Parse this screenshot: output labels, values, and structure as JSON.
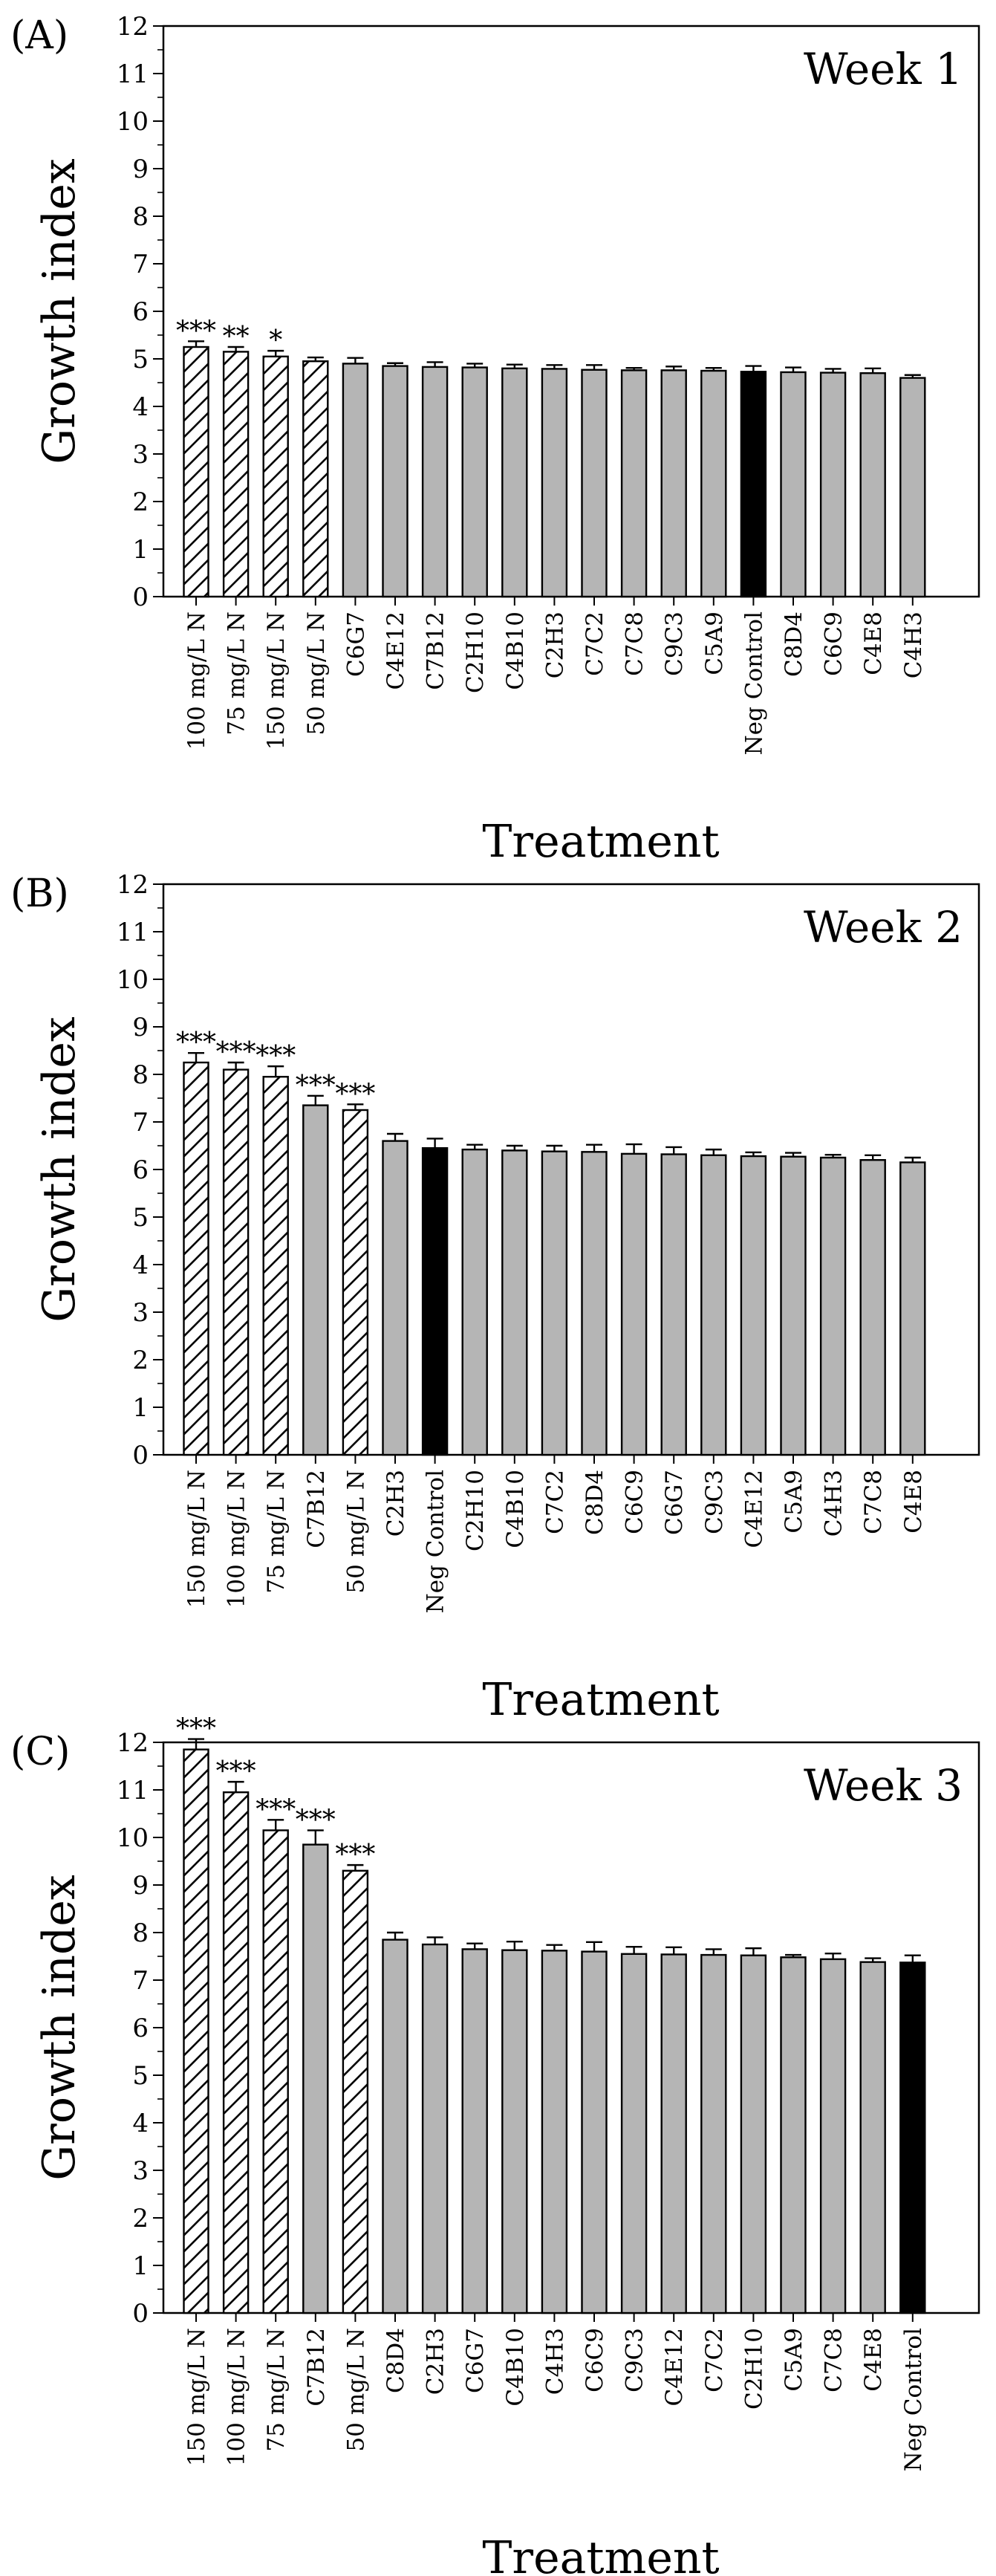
{
  "chart_data": [
    {
      "type": "bar",
      "panel_label": "(A)",
      "title": "Week 1",
      "xlabel": "Treatment",
      "ylabel": "Growth index",
      "ylim": [
        0,
        12
      ],
      "yticks": [
        0,
        1,
        2,
        3,
        4,
        5,
        6,
        7,
        8,
        9,
        10,
        11,
        12
      ],
      "categories": [
        "100 mg/L N",
        "75 mg/L N",
        "150 mg/L N",
        "50 mg/L N",
        "C6G7",
        "C4E12",
        "C7B12",
        "C2H10",
        "C4B10",
        "C2H3",
        "C7C2",
        "C7C8",
        "C9C3",
        "C5A9",
        "Neg Control",
        "C8D4",
        "C6C9",
        "C4E8",
        "C4H3"
      ],
      "values": [
        5.25,
        5.15,
        5.05,
        4.95,
        4.9,
        4.85,
        4.83,
        4.82,
        4.8,
        4.79,
        4.77,
        4.76,
        4.76,
        4.75,
        4.73,
        4.72,
        4.71,
        4.7,
        4.6
      ],
      "errors": [
        0.12,
        0.1,
        0.12,
        0.08,
        0.12,
        0.06,
        0.1,
        0.08,
        0.08,
        0.08,
        0.1,
        0.05,
        0.08,
        0.06,
        0.12,
        0.1,
        0.08,
        0.1,
        0.06
      ],
      "bar_styles": [
        "hatched",
        "hatched",
        "hatched",
        "hatched",
        "gray",
        "gray",
        "gray",
        "gray",
        "gray",
        "gray",
        "gray",
        "gray",
        "gray",
        "gray",
        "black",
        "gray",
        "gray",
        "gray",
        "gray"
      ],
      "significance": [
        "***",
        "**",
        "*",
        "",
        "",
        "",
        "",
        "",
        "",
        "",
        "",
        "",
        "",
        "",
        "",
        "",
        "",
        "",
        ""
      ]
    },
    {
      "type": "bar",
      "panel_label": "(B)",
      "title": "Week 2",
      "xlabel": "Treatment",
      "ylabel": "Growth index",
      "ylim": [
        0,
        12
      ],
      "yticks": [
        0,
        1,
        2,
        3,
        4,
        5,
        6,
        7,
        8,
        9,
        10,
        11,
        12
      ],
      "categories": [
        "150 mg/L N",
        "100 mg/L N",
        "75 mg/L N",
        "C7B12",
        "50 mg/L N",
        "C2H3",
        "Neg Control",
        "C2H10",
        "C4B10",
        "C7C2",
        "C8D4",
        "C6C9",
        "C6G7",
        "C9C3",
        "C4E12",
        "C5A9",
        "C4H3",
        "C7C8",
        "C4E8"
      ],
      "values": [
        8.25,
        8.1,
        7.95,
        7.35,
        7.25,
        6.6,
        6.45,
        6.42,
        6.4,
        6.38,
        6.37,
        6.33,
        6.32,
        6.3,
        6.28,
        6.27,
        6.25,
        6.2,
        6.15
      ],
      "errors": [
        0.2,
        0.15,
        0.22,
        0.2,
        0.12,
        0.15,
        0.2,
        0.1,
        0.1,
        0.12,
        0.15,
        0.2,
        0.15,
        0.12,
        0.08,
        0.08,
        0.06,
        0.1,
        0.1
      ],
      "bar_styles": [
        "hatched",
        "hatched",
        "hatched",
        "gray",
        "hatched",
        "gray",
        "black",
        "gray",
        "gray",
        "gray",
        "gray",
        "gray",
        "gray",
        "gray",
        "gray",
        "gray",
        "gray",
        "gray",
        "gray"
      ],
      "significance": [
        "***",
        "***",
        "***",
        "***",
        "***",
        "",
        "",
        "",
        "",
        "",
        "",
        "",
        "",
        "",
        "",
        "",
        "",
        "",
        ""
      ]
    },
    {
      "type": "bar",
      "panel_label": "(C)",
      "title": "Week 3",
      "xlabel": "Treatment",
      "ylabel": "Growth index",
      "ylim": [
        0,
        12
      ],
      "yticks": [
        0,
        1,
        2,
        3,
        4,
        5,
        6,
        7,
        8,
        9,
        10,
        11,
        12
      ],
      "categories": [
        "150 mg/L N",
        "100 mg/L N",
        "75 mg/L N",
        "C7B12",
        "50 mg/L N",
        "C8D4",
        "C2H3",
        "C6G7",
        "C4B10",
        "C4H3",
        "C6C9",
        "C9C3",
        "C4E12",
        "C7C2",
        "C2H10",
        "C5A9",
        "C7C8",
        "C4E8",
        "Neg Control"
      ],
      "values": [
        11.85,
        10.95,
        10.15,
        9.85,
        9.3,
        7.85,
        7.75,
        7.65,
        7.63,
        7.62,
        7.6,
        7.55,
        7.54,
        7.53,
        7.52,
        7.48,
        7.44,
        7.38,
        7.37
      ],
      "errors": [
        0.22,
        0.22,
        0.22,
        0.3,
        0.12,
        0.15,
        0.15,
        0.12,
        0.18,
        0.12,
        0.2,
        0.15,
        0.15,
        0.12,
        0.15,
        0.05,
        0.12,
        0.08,
        0.15
      ],
      "bar_styles": [
        "hatched",
        "hatched",
        "hatched",
        "gray",
        "hatched",
        "gray",
        "gray",
        "gray",
        "gray",
        "gray",
        "gray",
        "gray",
        "gray",
        "gray",
        "gray",
        "gray",
        "gray",
        "gray",
        "black"
      ],
      "significance": [
        "***",
        "***",
        "***",
        "***",
        "***",
        "",
        "",
        "",
        "",
        "",
        "",
        "",
        "",
        "",
        "",
        "",
        "",
        "",
        ""
      ]
    }
  ],
  "colors": {
    "gray_fill": "#b5b5b5",
    "black_fill": "#000000",
    "hatched_fill": "#ffffff",
    "stroke": "#000000"
  }
}
